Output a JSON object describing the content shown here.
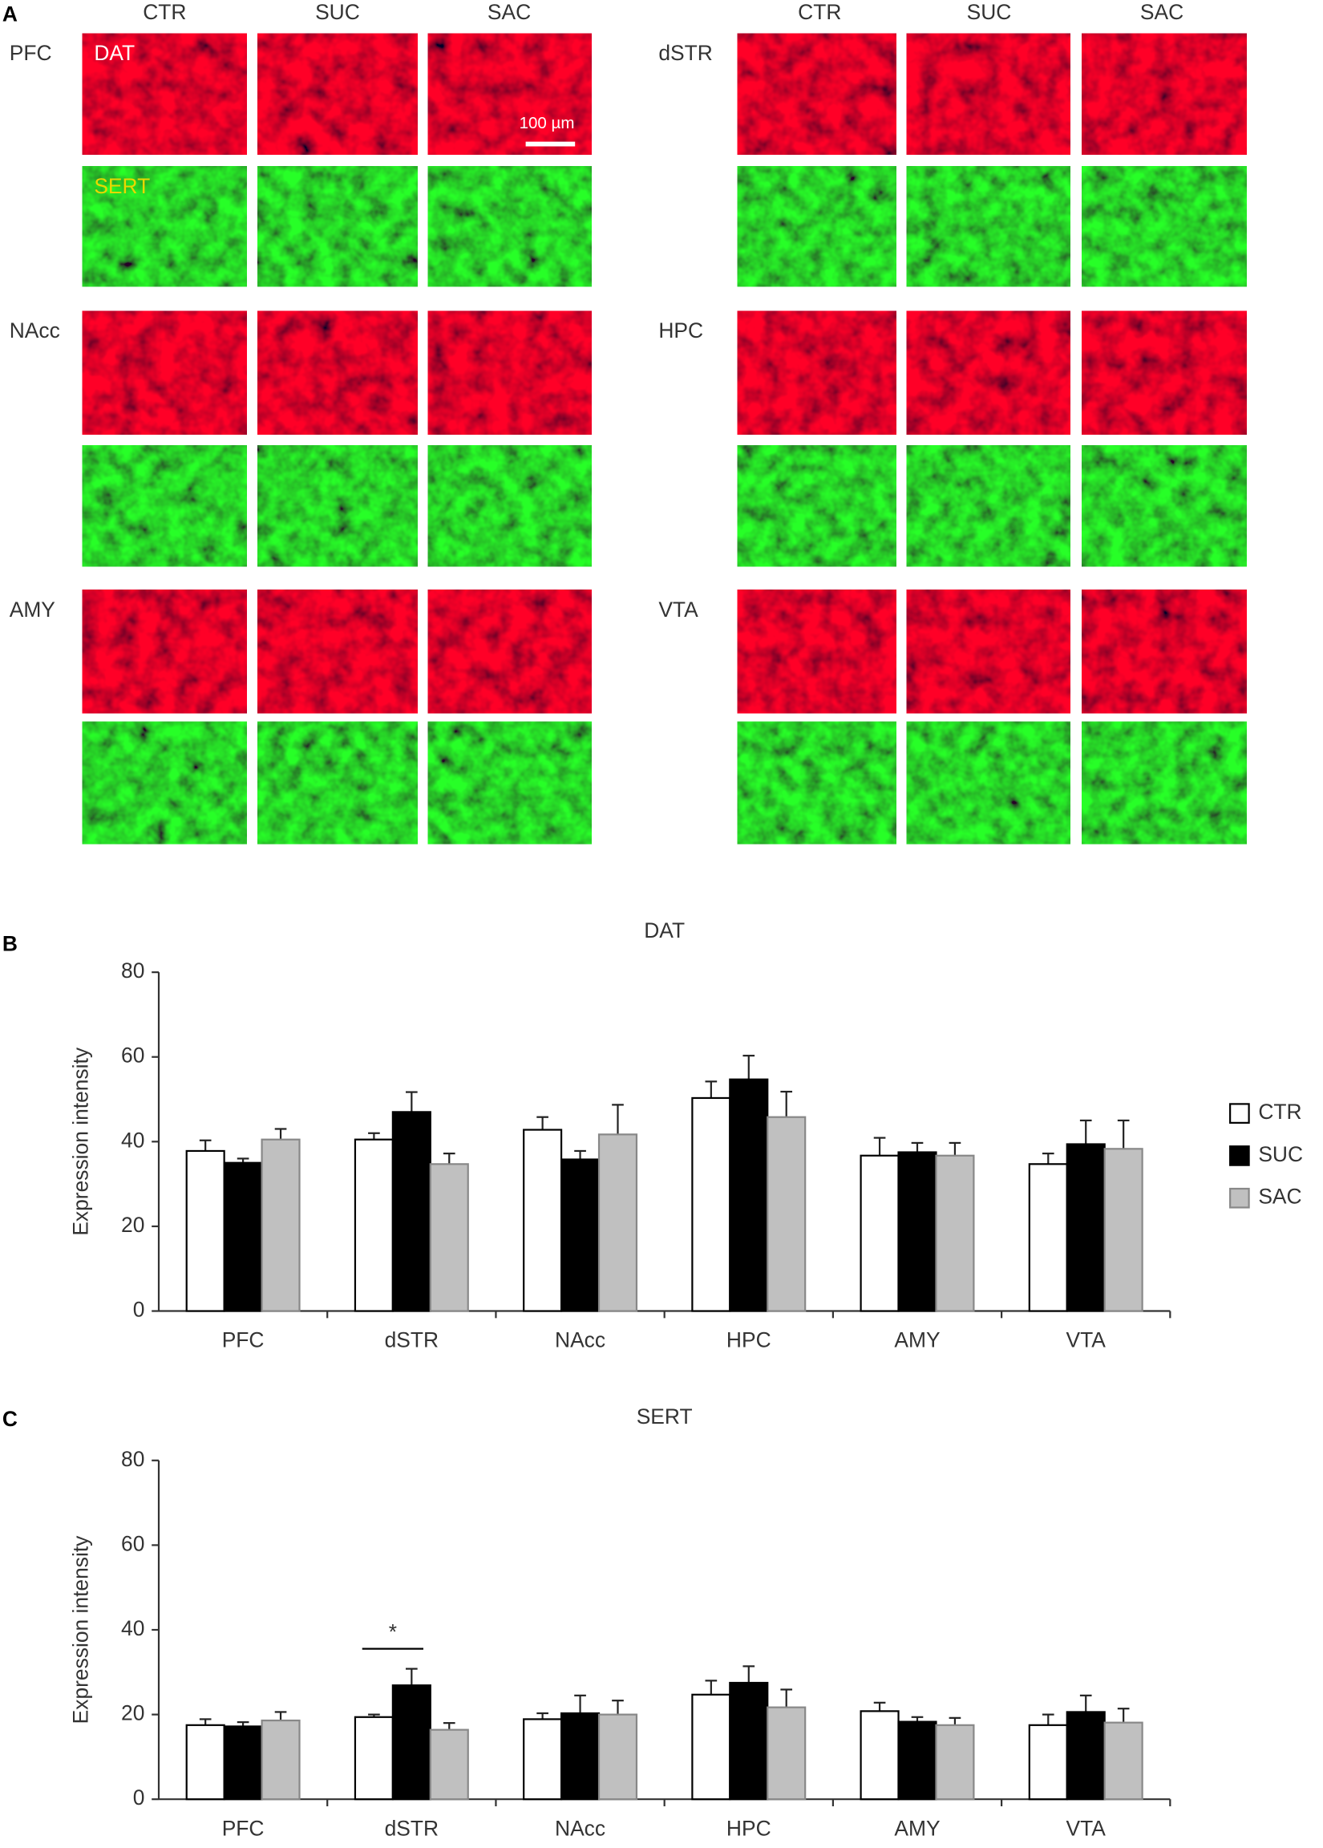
{
  "panel_a": {
    "label": "A",
    "columns": [
      "CTR",
      "SUC",
      "SAC"
    ],
    "regions": [
      "PFC",
      "NAcc",
      "AMY",
      "dSTR",
      "HPC",
      "VTA"
    ],
    "channels": [
      "DAT",
      "SERT"
    ],
    "scale_bar": "100 µm"
  },
  "chart_data": [
    {
      "type": "bar",
      "panel_label": "B",
      "title": "DAT",
      "y_label": "Expression intensity",
      "categories": [
        "PFC",
        "dSTR",
        "NAcc",
        "HPC",
        "AMY",
        "VTA"
      ],
      "series": [
        {
          "name": "CTR",
          "color": "#ffffff",
          "values": [
            37.8,
            40.5,
            42.8,
            50.3,
            36.7,
            34.7
          ],
          "errors": [
            2.5,
            1.5,
            3,
            3.9,
            4.2,
            2.5
          ]
        },
        {
          "name": "SUC",
          "color": "#000000",
          "values": [
            35,
            47,
            35.8,
            54.7,
            37.5,
            39.4
          ],
          "errors": [
            1,
            4.7,
            2,
            5.6,
            2.2,
            5.6
          ]
        },
        {
          "name": "SAC",
          "color": "#c0c0c0",
          "values": [
            40.5,
            34.7,
            41.7,
            45.8,
            36.7,
            38.3
          ],
          "errors": [
            2.5,
            2.5,
            7,
            6,
            3,
            6.7
          ]
        }
      ],
      "ylim": [
        0,
        80
      ],
      "yticks": [
        0,
        20,
        40,
        60,
        80
      ],
      "legend": "right"
    },
    {
      "type": "bar",
      "panel_label": "C",
      "title": "SERT",
      "y_label": "Expression intensity",
      "categories": [
        "PFC",
        "dSTR",
        "NAcc",
        "HPC",
        "AMY",
        "VTA"
      ],
      "series": [
        {
          "name": "CTR",
          "color": "#ffffff",
          "values": [
            17.5,
            19.4,
            18.9,
            24.7,
            20.8,
            17.5
          ],
          "errors": [
            1.4,
            0.6,
            1.4,
            3.3,
            2,
            2.5
          ]
        },
        {
          "name": "SUC",
          "color": "#000000",
          "values": [
            17.2,
            26.9,
            20.3,
            27.5,
            18.3,
            20.6
          ],
          "errors": [
            1,
            3.9,
            4.2,
            3.9,
            1.1,
            3.9
          ]
        },
        {
          "name": "SAC",
          "color": "#c0c0c0",
          "values": [
            18.6,
            16.4,
            20,
            21.7,
            17.5,
            18.1
          ],
          "errors": [
            2,
            1.6,
            3.3,
            4.2,
            1.7,
            3.3
          ]
        }
      ],
      "ylim": [
        0,
        80
      ],
      "yticks": [
        0,
        20,
        40,
        60,
        80
      ],
      "annotations": [
        {
          "text": "*",
          "category": "dSTR",
          "series": [
            "CTR",
            "SUC"
          ]
        }
      ]
    }
  ]
}
